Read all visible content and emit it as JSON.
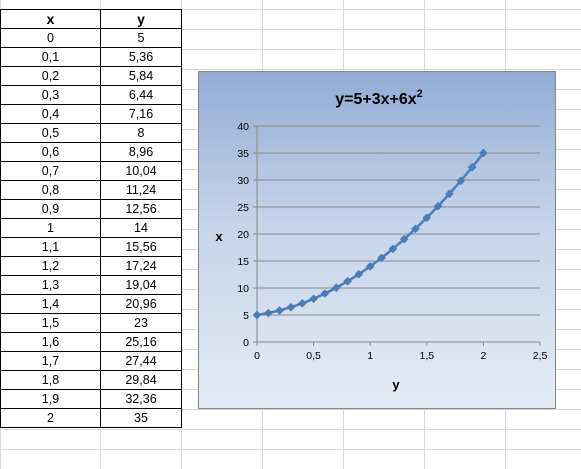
{
  "table": {
    "headers": [
      "x",
      "y"
    ],
    "rows": [
      [
        "0",
        "5"
      ],
      [
        "0,1",
        "5,36"
      ],
      [
        "0,2",
        "5,84"
      ],
      [
        "0,3",
        "6,44"
      ],
      [
        "0,4",
        "7,16"
      ],
      [
        "0,5",
        "8"
      ],
      [
        "0,6",
        "8,96"
      ],
      [
        "0,7",
        "10,04"
      ],
      [
        "0,8",
        "11,24"
      ],
      [
        "0,9",
        "12,56"
      ],
      [
        "1",
        "14"
      ],
      [
        "1,1",
        "15,56"
      ],
      [
        "1,2",
        "17,24"
      ],
      [
        "1,3",
        "19,04"
      ],
      [
        "1,4",
        "20,96"
      ],
      [
        "1,5",
        "23"
      ],
      [
        "1,6",
        "25,16"
      ],
      [
        "1,7",
        "27,44"
      ],
      [
        "1,8",
        "29,84"
      ],
      [
        "1,9",
        "32,36"
      ],
      [
        "2",
        "35"
      ]
    ]
  },
  "chart_data": {
    "type": "line",
    "title": "y=5+3x+6x",
    "title_superscript": "2",
    "xlabel": "y",
    "ylabel": "x",
    "x": [
      0,
      0.1,
      0.2,
      0.3,
      0.4,
      0.5,
      0.6,
      0.7,
      0.8,
      0.9,
      1,
      1.1,
      1.2,
      1.3,
      1.4,
      1.5,
      1.6,
      1.7,
      1.8,
      1.9,
      2
    ],
    "series": [
      {
        "values": [
          5,
          5.36,
          5.84,
          6.44,
          7.16,
          8,
          8.96,
          10.04,
          11.24,
          12.56,
          14,
          15.56,
          17.24,
          19.04,
          20.96,
          23,
          25.16,
          27.44,
          29.84,
          32.36,
          35
        ],
        "color": "#4a7ebb"
      }
    ],
    "xlim": [
      0,
      2.5
    ],
    "ylim": [
      0,
      40
    ],
    "xticks": [
      "0",
      "0,5",
      "1",
      "1,5",
      "2",
      "2,5"
    ],
    "yticks": [
      "0",
      "5",
      "10",
      "15",
      "20",
      "25",
      "30",
      "35",
      "40"
    ],
    "grid": true,
    "legend": "none"
  }
}
